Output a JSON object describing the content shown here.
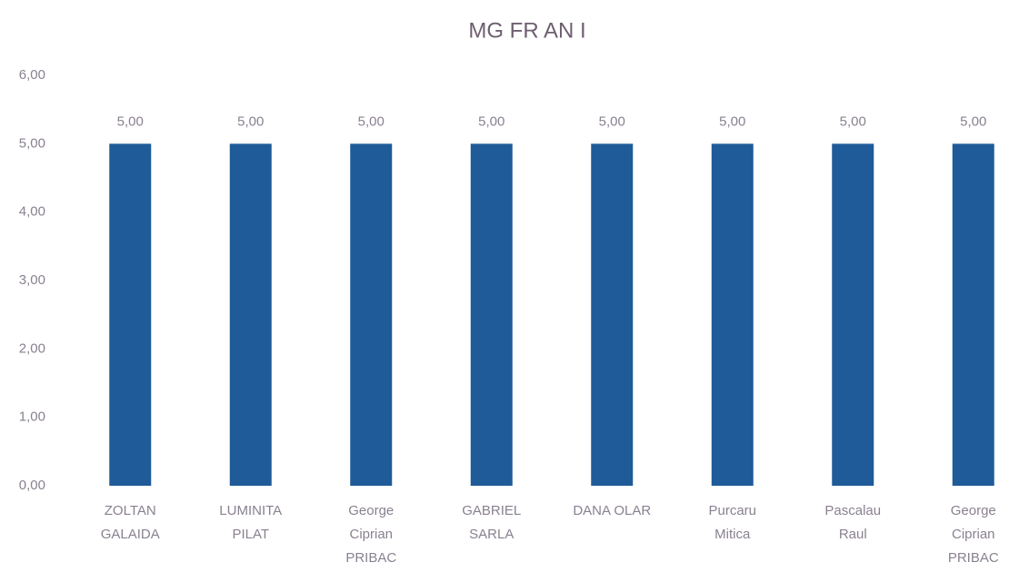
{
  "chart_data": {
    "type": "bar",
    "title": "MG FR AN I",
    "categories": [
      "ZOLTAN GALAIDA",
      "LUMINITA PILAT",
      "George Ciprian PRIBAC",
      "GABRIEL SARLA",
      "DANA OLAR",
      "Purcaru Mitica",
      "Pascalau Raul",
      "George Ciprian PRIBAC"
    ],
    "values": [
      5,
      5,
      5,
      5,
      5,
      5,
      5,
      5
    ],
    "value_labels": [
      "5,00",
      "5,00",
      "5,00",
      "5,00",
      "5,00",
      "5,00",
      "5,00",
      "5,00"
    ],
    "color": "#1f5b98",
    "ylim": [
      0,
      6
    ],
    "yticks": [
      {
        "value": 0,
        "label": "0,00"
      },
      {
        "value": 1,
        "label": "1,00"
      },
      {
        "value": 2,
        "label": "2,00"
      },
      {
        "value": 3,
        "label": "3,00"
      },
      {
        "value": 4,
        "label": "4,00"
      },
      {
        "value": 5,
        "label": "5,00"
      },
      {
        "value": 6,
        "label": "6,00"
      }
    ],
    "grid": false
  }
}
